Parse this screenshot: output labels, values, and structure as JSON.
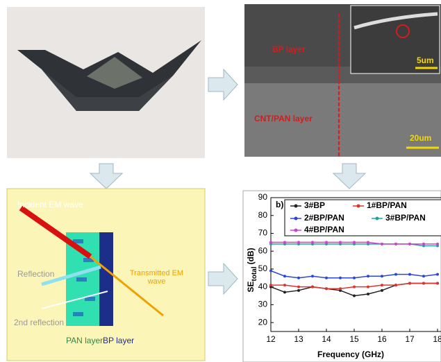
{
  "sem": {
    "bp_label": "BP layer",
    "cnt_label": "CNT/PAN layer",
    "inset_scale": "5um",
    "scale": "20um"
  },
  "diagram": {
    "incident": "Incident EM wave",
    "reflection": "Reflection",
    "transmitted": "Transmitted EM wave",
    "second_reflection": "2nd reflection",
    "pan": "PAN layer",
    "bp": "BP layer"
  },
  "chart_data": {
    "type": "line",
    "panel_label": "b)",
    "x_label": "Frequency (GHz)",
    "y_label_main": "SE",
    "y_label_sub": "total",
    "y_label_unit": "(dB)",
    "x": [
      12,
      12.5,
      13,
      13.5,
      14,
      14.5,
      15,
      15.5,
      16,
      16.5,
      17,
      17.5,
      18
    ],
    "series": [
      {
        "name": "3#BP",
        "color": "#222222",
        "values": [
          40,
          37,
          38,
          40,
          39,
          38,
          35,
          36,
          38,
          41,
          42,
          42,
          42
        ]
      },
      {
        "name": "1#BP/PAN",
        "color": "#e0332e",
        "values": [
          41,
          41,
          40,
          40,
          39,
          39,
          40,
          40,
          41,
          41,
          42,
          42,
          42
        ]
      },
      {
        "name": "2#BP/PAN",
        "color": "#2b47d8",
        "values": [
          49,
          46,
          45,
          46,
          45,
          45,
          45,
          46,
          46,
          47,
          47,
          46,
          47
        ]
      },
      {
        "name": "3#BP/PAN",
        "color": "#1aa5a0",
        "values": [
          64,
          64,
          64,
          64,
          64,
          64,
          64,
          64,
          64,
          64,
          64,
          63,
          63
        ]
      },
      {
        "name": "4#BP/PAN",
        "color": "#d040d0",
        "values": [
          65,
          65,
          65,
          65,
          65,
          65,
          65,
          65,
          64,
          64,
          64,
          64,
          64
        ]
      }
    ],
    "xlim": [
      12,
      18
    ],
    "xticks": [
      12,
      13,
      14,
      15,
      16,
      17,
      18
    ],
    "ylim": [
      15,
      90
    ],
    "yticks": [
      20,
      30,
      40,
      50,
      60,
      70,
      80,
      90
    ]
  }
}
